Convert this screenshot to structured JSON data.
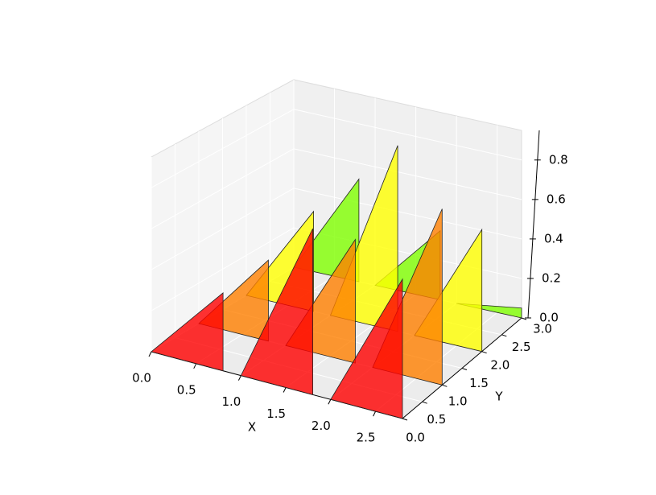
{
  "chart_data": {
    "type": "polygon3d",
    "x_label": "X",
    "y_label": "Y",
    "x": [
      0,
      1,
      2
    ],
    "width": 0.8,
    "alpha": 0.8,
    "series": [
      {
        "y": 0,
        "color": "#ff0000",
        "values": [
          0.38,
          0.81,
          0.68
        ]
      },
      {
        "y": 1,
        "color": "#ff8000",
        "values": [
          0.4,
          0.61,
          0.87
        ]
      },
      {
        "y": 2,
        "color": "#ffff00",
        "values": [
          0.5,
          0.93,
          0.61
        ]
      },
      {
        "y": 3,
        "color": "#7fff00",
        "values": [
          0.52,
          0.35,
          0.05
        ]
      }
    ],
    "xlim": [
      0,
      2.8
    ],
    "ylim": [
      0,
      3
    ],
    "zlim": [
      0,
      0.95
    ],
    "xticks": [
      {
        "value": 0,
        "label": "0.0"
      },
      {
        "value": 0.5,
        "label": "0.5"
      },
      {
        "value": 1,
        "label": "1.0"
      },
      {
        "value": 1.5,
        "label": "1.5"
      },
      {
        "value": 2,
        "label": "2.0"
      },
      {
        "value": 2.5,
        "label": "2.5"
      }
    ],
    "yticks": [
      {
        "value": 0,
        "label": "0.0"
      },
      {
        "value": 0.5,
        "label": "0.5"
      },
      {
        "value": 1,
        "label": "1.0"
      },
      {
        "value": 1.5,
        "label": "1.5"
      },
      {
        "value": 2,
        "label": "2.0"
      },
      {
        "value": 2.5,
        "label": "2.5"
      },
      {
        "value": 3,
        "label": "3.0"
      }
    ],
    "zticks": [
      {
        "value": 0,
        "label": "0.0"
      },
      {
        "value": 0.2,
        "label": "0.2"
      },
      {
        "value": 0.4,
        "label": "0.4"
      },
      {
        "value": 0.6,
        "label": "0.6"
      },
      {
        "value": 0.8,
        "label": "0.8"
      }
    ],
    "grid": true
  }
}
